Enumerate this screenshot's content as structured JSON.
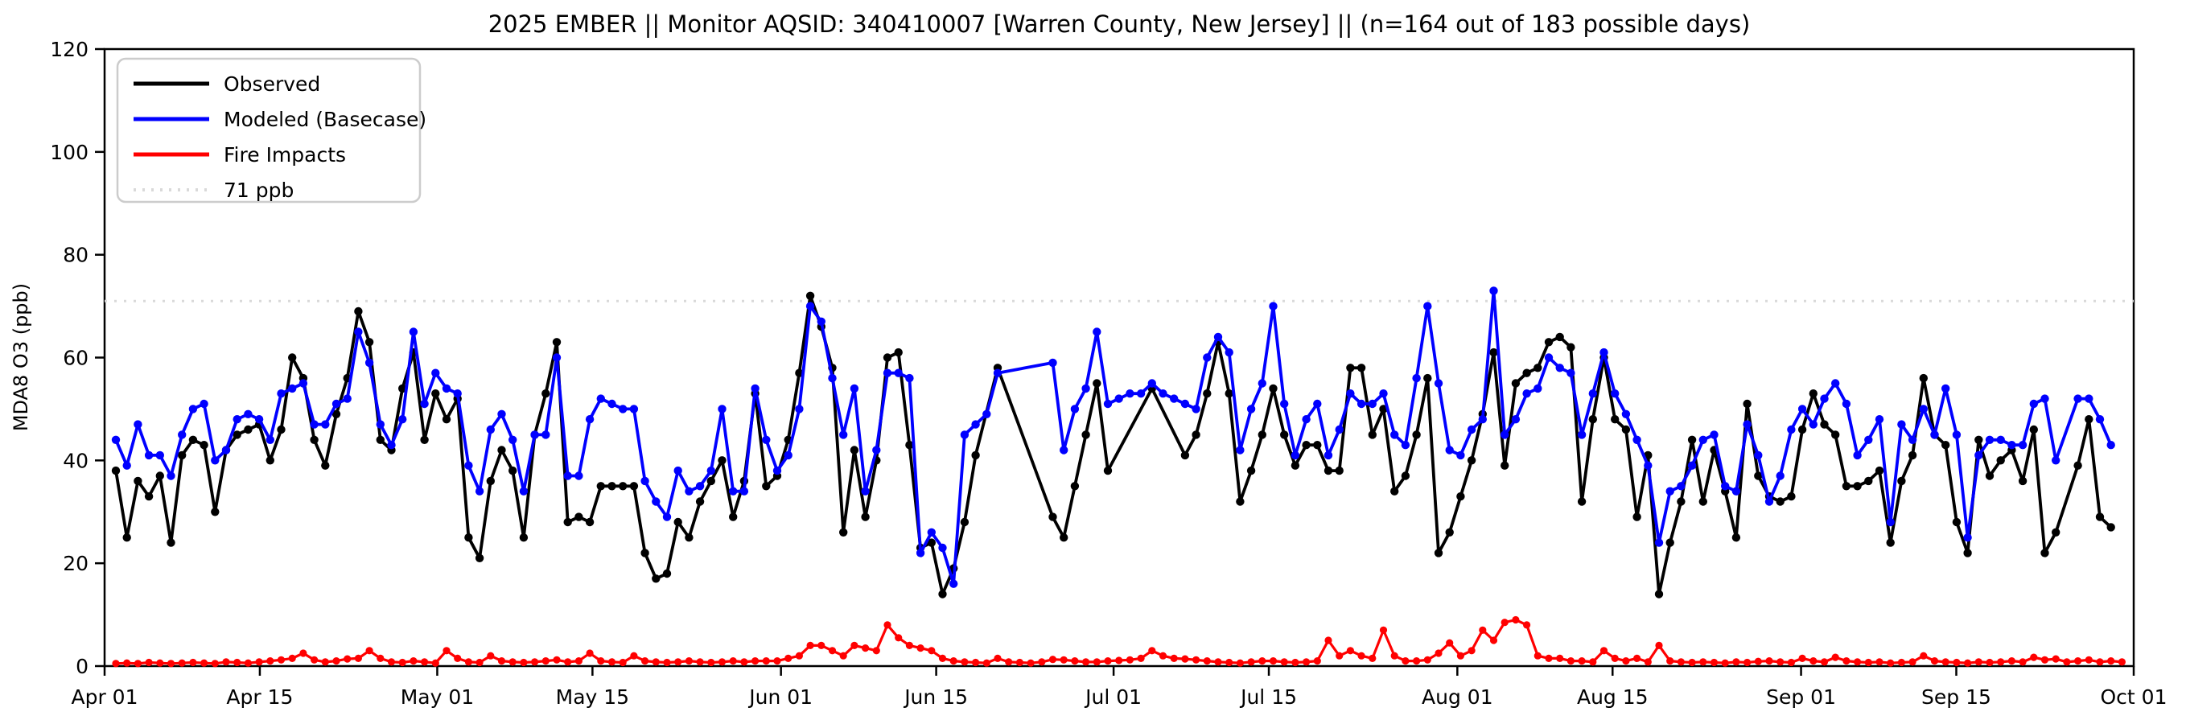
{
  "title": "2025 EMBER || Monitor AQSID: 340410007 [Warren County, New Jersey] || (n=164 out of 183 possible days)",
  "legend": {
    "items": [
      {
        "label": "Observed",
        "color": "#000000",
        "dash": "none"
      },
      {
        "label": "Modeled (Basecase)",
        "color": "#0000ff",
        "dash": "none"
      },
      {
        "label": "Fire Impacts",
        "color": "#ff0000",
        "dash": "none"
      },
      {
        "label": "71 ppb",
        "color": "#d9d9d9",
        "dash": "3,8"
      }
    ]
  },
  "axes": {
    "ylabel": "MDA8 O3 (ppb)",
    "ylim": [
      0,
      120
    ],
    "yticks": [
      0,
      20,
      40,
      60,
      80,
      100,
      120
    ],
    "xticks": [
      {
        "label": "Apr 01",
        "day": 0
      },
      {
        "label": "Apr 15",
        "day": 14
      },
      {
        "label": "May 01",
        "day": 30
      },
      {
        "label": "May 15",
        "day": 44
      },
      {
        "label": "Jun 01",
        "day": 61
      },
      {
        "label": "Jun 15",
        "day": 75
      },
      {
        "label": "Jul 01",
        "day": 91
      },
      {
        "label": "Jul 15",
        "day": 105
      },
      {
        "label": "Aug 01",
        "day": 122
      },
      {
        "label": "Aug 15",
        "day": 136
      },
      {
        "label": "Sep 01",
        "day": 153
      },
      {
        "label": "Sep 15",
        "day": 167
      },
      {
        "label": "Oct 01",
        "day": 183
      }
    ]
  },
  "chart_data": {
    "type": "line",
    "title": "2025 EMBER || Monitor AQSID: 340410007 [Warren County, New Jersey] || (n=164 out of 183 possible days)",
    "xlabel": "",
    "ylabel": "MDA8 O3 (ppb)",
    "ylim": [
      0,
      120
    ],
    "x_days_span": 183,
    "x_range_labels": [
      "Apr 01",
      "Oct 01"
    ],
    "threshold": {
      "value": 71,
      "label": "71 ppb",
      "color": "#d9d9d9",
      "style": "dotted"
    },
    "legend_position": "upper left",
    "grid": false,
    "note_missing_days_rendered_as": null,
    "series": [
      {
        "name": "Observed",
        "color": "#000000",
        "marker": "circle",
        "values": [
          38,
          25,
          36,
          33,
          37,
          24,
          41,
          44,
          43,
          30,
          42,
          45,
          46,
          47,
          40,
          46,
          60,
          56,
          44,
          39,
          49,
          56,
          69,
          63,
          44,
          42,
          54,
          61,
          44,
          53,
          48,
          52,
          25,
          21,
          36,
          42,
          38,
          25,
          45,
          53,
          63,
          28,
          29,
          28,
          35,
          35,
          35,
          35,
          22,
          17,
          18,
          28,
          25,
          32,
          36,
          40,
          29,
          36,
          53,
          35,
          37,
          44,
          57,
          72,
          66,
          58,
          26,
          42,
          29,
          40,
          60,
          61,
          43,
          23,
          24,
          14,
          19,
          28,
          41,
          null,
          58,
          null,
          null,
          null,
          null,
          29,
          25,
          35,
          45,
          55,
          38,
          null,
          null,
          null,
          54,
          null,
          null,
          41,
          45,
          53,
          63,
          53,
          32,
          38,
          45,
          54,
          45,
          39,
          43,
          43,
          38,
          38,
          58,
          58,
          45,
          50,
          34,
          37,
          45,
          56,
          22,
          26,
          33,
          40,
          49,
          61,
          39,
          55,
          57,
          58,
          63,
          64,
          62,
          32,
          48,
          60,
          48,
          46,
          29,
          41,
          14,
          24,
          32,
          44,
          32,
          42,
          34,
          25,
          51,
          37,
          33,
          32,
          33,
          46,
          53,
          47,
          45,
          35,
          35,
          36,
          38,
          24,
          36,
          41,
          56,
          45,
          43,
          28,
          22,
          44,
          37,
          40,
          42,
          36,
          46,
          22,
          26,
          null,
          39,
          48,
          29,
          27,
          null
        ]
      },
      {
        "name": "Modeled (Basecase)",
        "color": "#0000ff",
        "marker": "circle",
        "values": [
          44,
          39,
          47,
          41,
          41,
          37,
          45,
          50,
          51,
          40,
          42,
          48,
          49,
          48,
          44,
          53,
          54,
          55,
          47,
          47,
          51,
          52,
          65,
          59,
          47,
          43,
          48,
          65,
          51,
          57,
          54,
          53,
          39,
          34,
          46,
          49,
          44,
          34,
          45,
          45,
          60,
          37,
          37,
          48,
          52,
          51,
          50,
          50,
          36,
          32,
          29,
          38,
          34,
          35,
          38,
          50,
          34,
          34,
          54,
          44,
          38,
          41,
          50,
          70,
          67,
          56,
          45,
          54,
          34,
          42,
          57,
          57,
          56,
          22,
          26,
          23,
          16,
          45,
          47,
          49,
          57,
          null,
          null,
          null,
          null,
          59,
          42,
          50,
          54,
          65,
          51,
          52,
          53,
          53,
          55,
          53,
          52,
          51,
          50,
          60,
          64,
          61,
          42,
          50,
          55,
          70,
          51,
          41,
          48,
          51,
          41,
          46,
          53,
          51,
          51,
          53,
          45,
          43,
          56,
          70,
          55,
          42,
          41,
          46,
          48,
          73,
          45,
          48,
          53,
          54,
          60,
          58,
          57,
          45,
          53,
          61,
          53,
          49,
          44,
          39,
          24,
          34,
          35,
          39,
          44,
          45,
          35,
          34,
          47,
          41,
          32,
          37,
          46,
          50,
          47,
          52,
          55,
          51,
          41,
          44,
          48,
          28,
          47,
          44,
          50,
          45,
          54,
          45,
          25,
          41,
          44,
          44,
          43,
          43,
          51,
          52,
          40,
          null,
          52,
          52,
          48,
          43,
          null
        ]
      },
      {
        "name": "Fire Impacts",
        "color": "#ff0000",
        "marker": "circle",
        "values": [
          0.5,
          0.6,
          0.5,
          0.7,
          0.6,
          0.5,
          0.6,
          0.7,
          0.6,
          0.5,
          0.8,
          0.7,
          0.6,
          0.8,
          1,
          1.2,
          1.5,
          2.5,
          1.2,
          0.8,
          1,
          1.4,
          1.5,
          3,
          1.5,
          0.8,
          0.7,
          1,
          0.8,
          0.6,
          3,
          1.5,
          0.8,
          0.7,
          2,
          1,
          0.8,
          0.7,
          0.8,
          1,
          1.2,
          0.8,
          1,
          2.5,
          1,
          0.8,
          0.7,
          2,
          1,
          0.8,
          0.7,
          0.8,
          1,
          0.8,
          0.7,
          0.8,
          1,
          0.8,
          1,
          1,
          1,
          1.5,
          2,
          4,
          4,
          3,
          2,
          4,
          3.5,
          3,
          8,
          5.5,
          4,
          3.5,
          3,
          1.5,
          1,
          0.8,
          0.7,
          0.6,
          1.5,
          0.8,
          0.7,
          0.6,
          0.8,
          1.3,
          1.2,
          1,
          0.8,
          0.8,
          1,
          1.1,
          1.2,
          1.5,
          3,
          2,
          1.5,
          1.4,
          1.2,
          1,
          0.8,
          0.7,
          0.6,
          0.8,
          1,
          1,
          0.8,
          0.7,
          0.8,
          1,
          5,
          2,
          3,
          2,
          1.5,
          7,
          2,
          1,
          1,
          1.2,
          2.5,
          4.5,
          2,
          3,
          7,
          5,
          8.5,
          9,
          8,
          2,
          1.5,
          1.5,
          1,
          1,
          0.8,
          3,
          1.5,
          1,
          1.5,
          0.8,
          4,
          1,
          0.8,
          0.7,
          0.8,
          0.7,
          0.6,
          0.8,
          0.7,
          0.9,
          1,
          0.8,
          0.7,
          1.5,
          1,
          0.8,
          1.7,
          1,
          0.8,
          0.7,
          0.8,
          0.6,
          0.7,
          0.8,
          2,
          1,
          0.8,
          0.7,
          0.6,
          0.8,
          0.7,
          0.8,
          1,
          0.8,
          1.7,
          1.2,
          1.4,
          0.8,
          1,
          1.2,
          0.8,
          1,
          0.8
        ]
      }
    ]
  }
}
